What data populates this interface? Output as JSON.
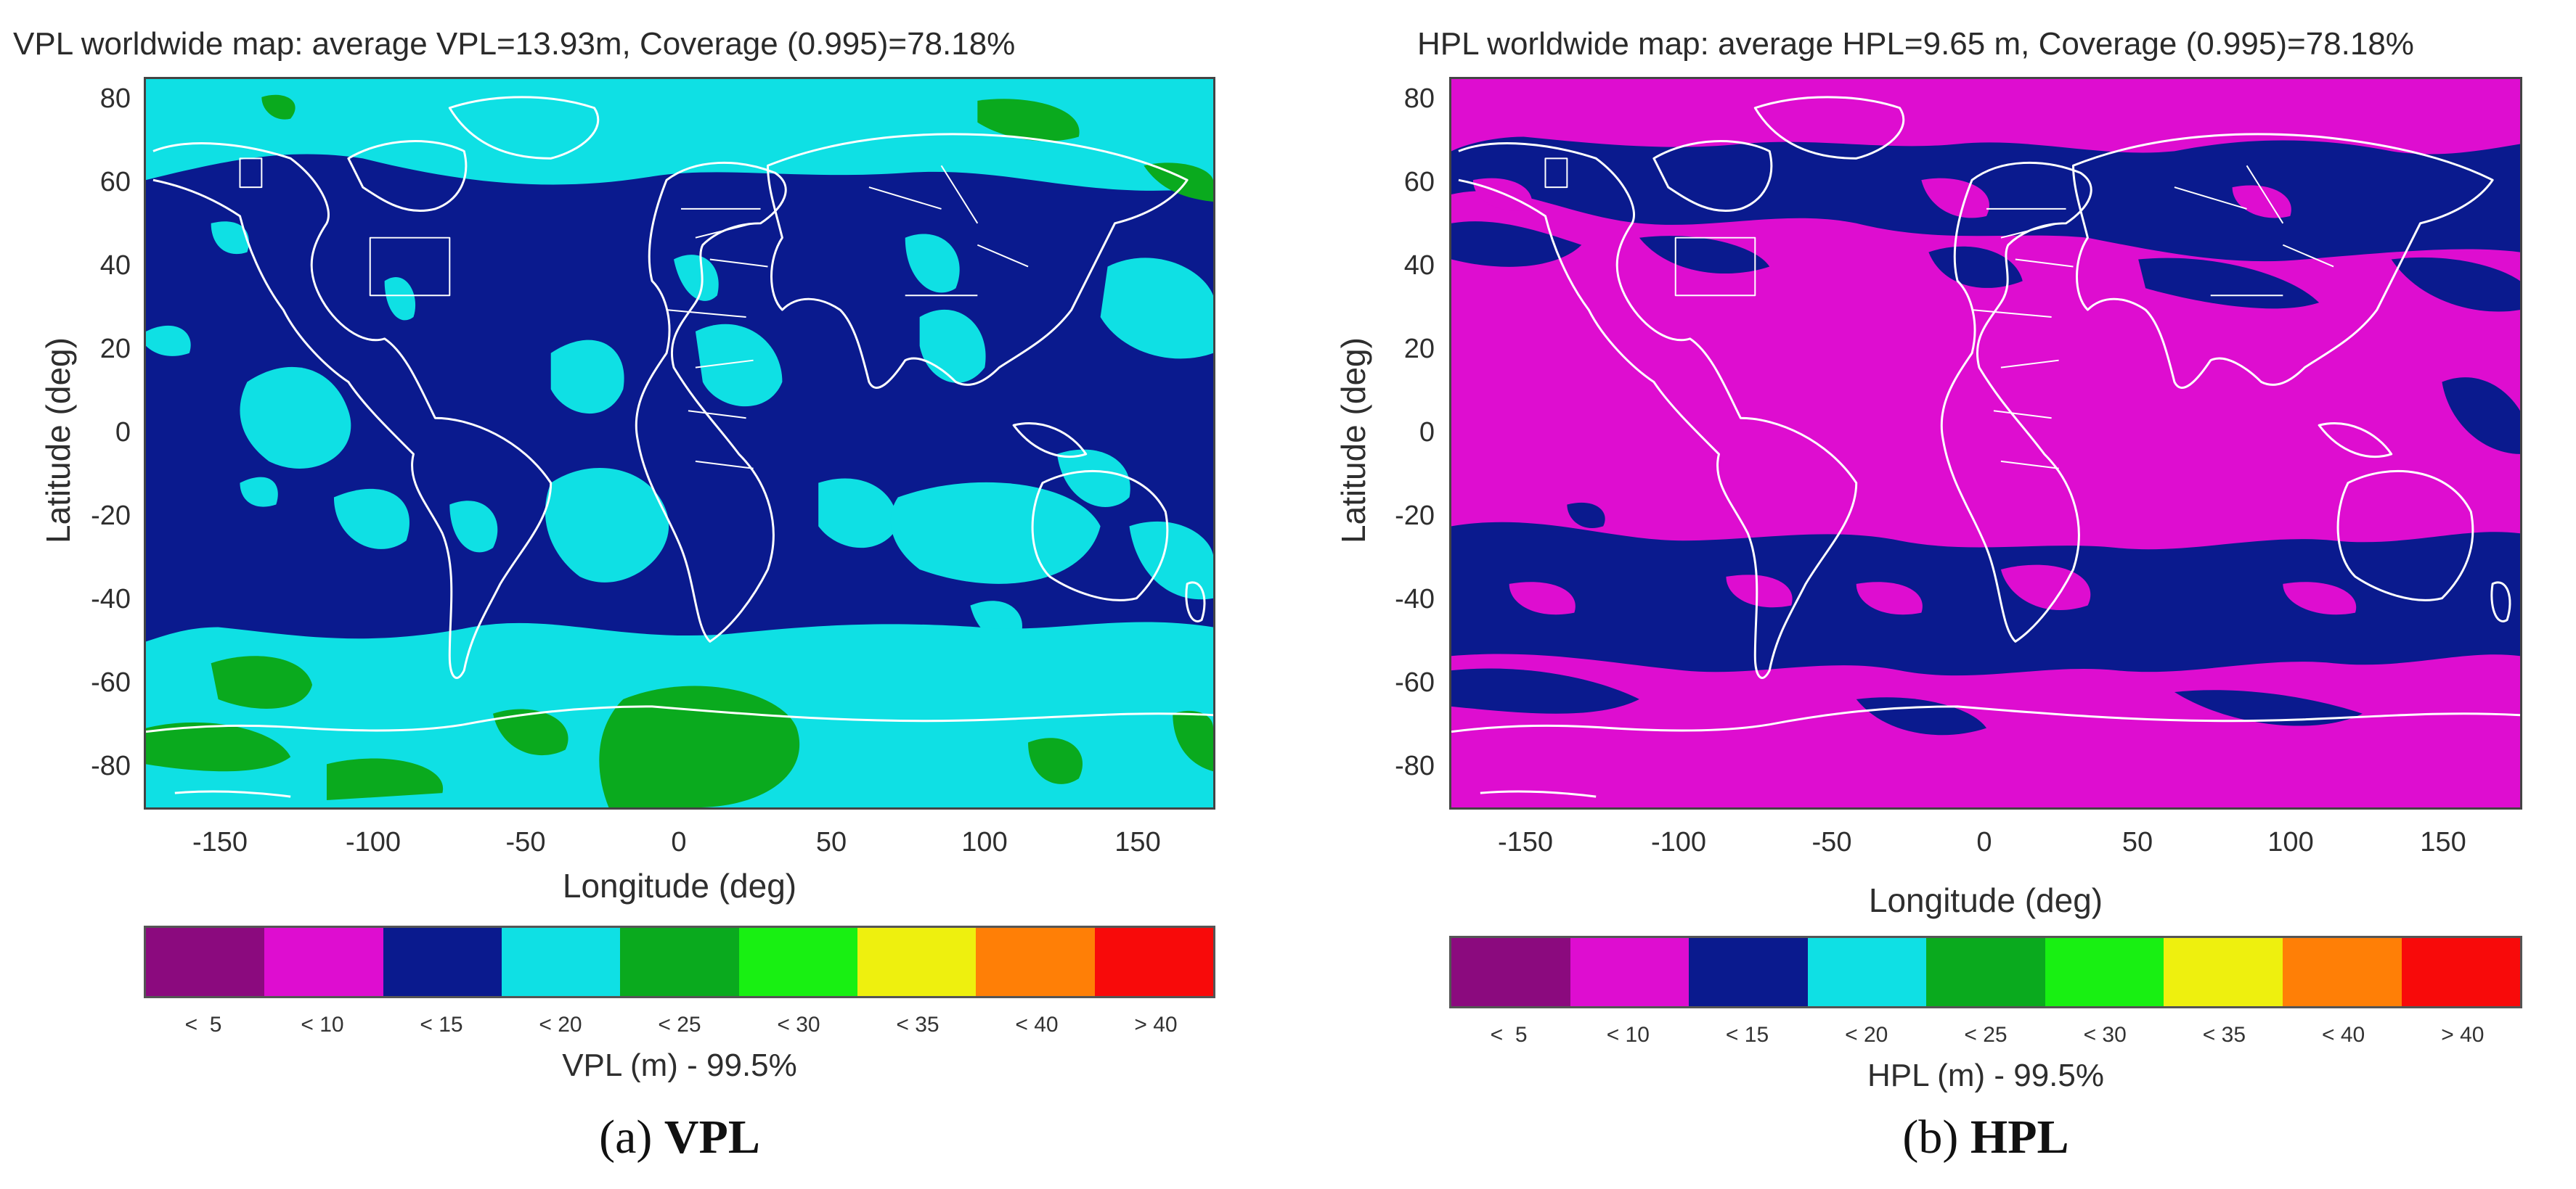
{
  "panels": [
    {
      "title": "VPL worldwide map: average VPL=13.93m, Coverage (0.995)=78.18%",
      "ylabel": "Latitude (deg)",
      "xlabel": "Longitude (deg)",
      "yticks": [
        "80",
        "60",
        "40",
        "20",
        "0",
        "-20",
        "-40",
        "-60",
        "-80"
      ],
      "xticks": [
        "-150",
        "-100",
        "-50",
        "0",
        "50",
        "100",
        "150"
      ],
      "colorbar_title": "VPL (m) - 99.5%",
      "caption_letter": "(a)",
      "caption_text": "VPL",
      "dominant_band": "< 15"
    },
    {
      "title": "HPL worldwide map: average HPL=9.65 m, Coverage (0.995)=78.18%",
      "ylabel": "Latitude (deg)",
      "xlabel": "Longitude (deg)",
      "yticks": [
        "80",
        "60",
        "40",
        "20",
        "0",
        "-20",
        "-40",
        "-60",
        "-80"
      ],
      "xticks": [
        "-150",
        "-100",
        "-50",
        "0",
        "50",
        "100",
        "150"
      ],
      "colorbar_title": "HPL (m) - 99.5%",
      "caption_letter": "(b)",
      "caption_text": "HPL",
      "dominant_band": "< 10"
    }
  ],
  "colorbar": [
    {
      "label": "<  5",
      "color": "#8b0a7e"
    },
    {
      "label": "< 10",
      "color": "#de0dd0"
    },
    {
      "label": "< 15",
      "color": "#0a1a8e"
    },
    {
      "label": "< 20",
      "color": "#0fe0e4"
    },
    {
      "label": "< 25",
      "color": "#0aaa1e"
    },
    {
      "label": "< 30",
      "color": "#18f012"
    },
    {
      "label": "< 35",
      "color": "#eef00e"
    },
    {
      "label": "< 40",
      "color": "#ff7f06"
    },
    {
      "label": "> 40",
      "color": "#f80a0a"
    }
  ],
  "axis_ranges": {
    "lon": [
      -180,
      175
    ],
    "lat": [
      -90,
      85
    ]
  },
  "coastline_color": "#ffffff"
}
